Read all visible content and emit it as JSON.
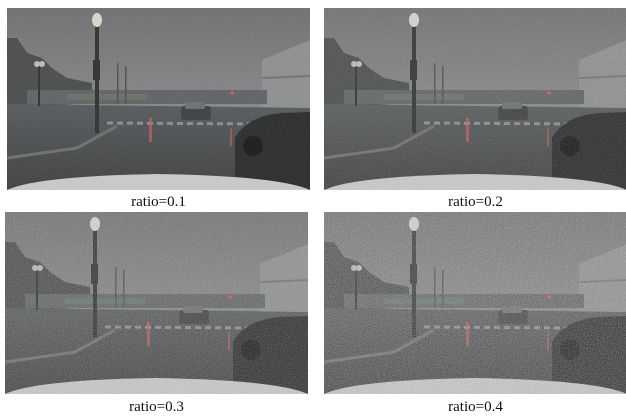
{
  "panels": [
    {
      "caption": "ratio=0.1",
      "noise": 0.1
    },
    {
      "caption": "ratio=0.2",
      "noise": 0.2
    },
    {
      "caption": "ratio=0.3",
      "noise": 0.3
    },
    {
      "caption": "ratio=0.4",
      "noise": 0.4
    }
  ]
}
